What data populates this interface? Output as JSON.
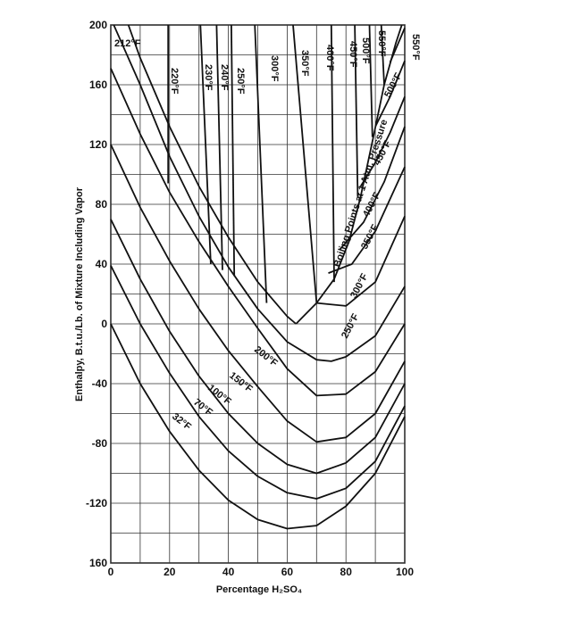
{
  "chart_data": {
    "type": "line",
    "xlabel": "Percentage H₂SO₄",
    "ylabel": "Enthalpy, B.t.u./Lb. of Mixture Including Vapor",
    "annotation": "Boiling Points at 1 Atm. Pressure",
    "xlim": [
      0,
      100
    ],
    "ylim": [
      -160,
      200
    ],
    "xticks": [
      0,
      20,
      40,
      60,
      80,
      100
    ],
    "xgrid": [
      10,
      30,
      50,
      70,
      90
    ],
    "yticks": [
      200,
      160,
      120,
      80,
      40,
      0,
      -40,
      -80,
      -120,
      {
        "value": -160,
        "label": "160"
      }
    ],
    "ygrid": [
      180,
      140,
      100,
      60,
      20,
      -20,
      -60,
      -100,
      -140
    ],
    "grid": true,
    "color": "#111111",
    "series": [
      {
        "name": "32°F",
        "x": [
          0,
          10,
          20,
          30,
          40,
          50,
          60,
          70,
          80,
          90,
          100
        ],
        "values": [
          0,
          -40,
          -72,
          -98,
          -118,
          -131,
          -137,
          -135,
          -122,
          -100,
          -62
        ]
      },
      {
        "name": "70°F",
        "x": [
          0,
          10,
          20,
          30,
          40,
          50,
          60,
          70,
          80,
          90,
          100
        ],
        "values": [
          39,
          0,
          -33,
          -62,
          -85,
          -102,
          -113,
          -117,
          -110,
          -92,
          -55
        ]
      },
      {
        "name": "100°F",
        "x": [
          0,
          10,
          20,
          30,
          40,
          50,
          60,
          70,
          80,
          90,
          100
        ],
        "values": [
          70,
          30,
          -5,
          -35,
          -60,
          -80,
          -94,
          -100,
          -93,
          -76,
          -40
        ]
      },
      {
        "name": "150°F",
        "x": [
          0,
          10,
          20,
          30,
          40,
          50,
          60,
          70,
          80,
          90,
          100
        ],
        "values": [
          120,
          78,
          42,
          10,
          -18,
          -42,
          -65,
          -79,
          -76,
          -60,
          -25
        ]
      },
      {
        "name": "200°F",
        "x": [
          0,
          10,
          20,
          30,
          40,
          50,
          60,
          70,
          80,
          90,
          100
        ],
        "values": [
          171,
          127,
          88,
          55,
          25,
          -3,
          -30,
          -48,
          -47,
          -32,
          0
        ]
      },
      {
        "name": "212°F",
        "x": [
          6,
          10,
          20,
          30,
          40,
          50,
          60,
          63
        ],
        "values": [
          200,
          178,
          132,
          92,
          58,
          28,
          5,
          0
        ]
      },
      {
        "name": "250°F",
        "x": [
          1,
          10,
          20,
          30,
          40,
          50,
          60,
          70,
          75,
          80,
          90,
          100
        ],
        "values": [
          200,
          160,
          112,
          72,
          38,
          10,
          -12,
          -24,
          -25,
          -22,
          -8,
          25
        ]
      },
      {
        "name": "300°F",
        "x": [
          70,
          80,
          90,
          100
        ],
        "values": [
          14,
          12,
          28,
          72
        ]
      },
      {
        "name": "350°F",
        "x": [
          74,
          82,
          90,
          100
        ],
        "values": [
          34,
          40,
          62,
          105
        ]
      },
      {
        "name": "400°F",
        "x": [
          78,
          86,
          93,
          100
        ],
        "values": [
          50,
          68,
          95,
          132
        ]
      },
      {
        "name": "450°F",
        "x": [
          85,
          90,
          95,
          100
        ],
        "values": [
          92,
          108,
          128,
          152
        ]
      },
      {
        "name": "500°F",
        "x": [
          90,
          95,
          100
        ],
        "values": [
          132,
          152,
          176
        ]
      },
      {
        "name": "550°F",
        "x": [
          95,
          100
        ],
        "values": [
          175,
          198
        ]
      },
      {
        "name": "220°F",
        "x": [
          19.5,
          19.5
        ],
        "values": [
          200,
          94
        ]
      },
      {
        "name": "230°F",
        "x": [
          30.5,
          34
        ],
        "values": [
          200,
          40
        ]
      },
      {
        "name": "240°F",
        "x": [
          36,
          38
        ],
        "values": [
          200,
          36
        ]
      },
      {
        "name": "250°F",
        "x": [
          41,
          42
        ],
        "values": [
          200,
          32
        ]
      },
      {
        "name": "300°F",
        "x": [
          49,
          53
        ],
        "values": [
          200,
          14
        ]
      },
      {
        "name": "350°F",
        "x": [
          62,
          70
        ],
        "values": [
          200,
          14
        ]
      },
      {
        "name": "400°F",
        "x": [
          75,
          76
        ],
        "values": [
          200,
          28
        ]
      },
      {
        "name": "450°F",
        "x": [
          83,
          84
        ],
        "values": [
          200,
          85
        ]
      },
      {
        "name": "500°F",
        "x": [
          88,
          89
        ],
        "values": [
          200,
          125
        ]
      },
      {
        "name": "550°F",
        "x": [
          92,
          93
        ],
        "values": [
          200,
          160
        ]
      },
      {
        "name": "Boiling Points at 1 Atm. Pressure",
        "x": [
          63,
          70,
          76,
          81,
          85,
          89,
          93,
          97,
          99
        ],
        "values": [
          0,
          14,
          30,
          55,
          85,
          122,
          160,
          188,
          200
        ]
      }
    ]
  }
}
